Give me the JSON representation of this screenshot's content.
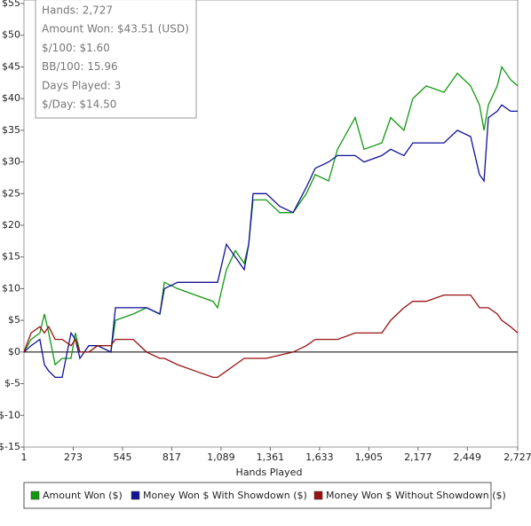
{
  "chart_data": {
    "type": "line",
    "x_label": "Hands Played",
    "stats": [
      "Hands: 2,727",
      "Amount Won: $43.51 (USD)",
      "$/100: $1.60",
      "BB/100: 15.96",
      "Days Played: 3",
      "$/Day: $14.50"
    ],
    "x": [
      1,
      40,
      89,
      114,
      138,
      173,
      212,
      261,
      285,
      310,
      359,
      408,
      481,
      506,
      604,
      678,
      751,
      776,
      849,
      947,
      1045,
      1070,
      1119,
      1168,
      1217,
      1242,
      1266,
      1339,
      1413,
      1487,
      1560,
      1609,
      1683,
      1732,
      1830,
      1879,
      1977,
      2026,
      2099,
      2148,
      2222,
      2320,
      2394,
      2467,
      2516,
      2541,
      2565,
      2614,
      2639,
      2688,
      2727
    ],
    "series": [
      {
        "name": "Amount Won ($)",
        "color": "#119911",
        "values": [
          0,
          2,
          3,
          6,
          3,
          -2,
          -1,
          -1,
          3,
          0,
          0,
          1,
          0,
          5,
          6,
          7,
          6,
          11,
          10,
          9,
          8,
          7,
          13,
          16,
          14,
          17,
          24,
          24,
          22,
          22,
          25,
          28,
          27,
          32,
          37,
          32,
          33,
          37,
          35,
          40,
          42,
          41,
          44,
          42,
          39,
          35,
          39,
          42,
          45,
          43,
          42
        ]
      },
      {
        "name": "Money Won $ With Showdown ($)",
        "color": "#111199",
        "values": [
          0,
          1,
          2,
          -2,
          -3,
          -4,
          -4,
          3,
          2,
          -1,
          1,
          1,
          0,
          7,
          7,
          7,
          6,
          10,
          11,
          11,
          11,
          11,
          17,
          15,
          13,
          17,
          25,
          25,
          23,
          22,
          26,
          29,
          30,
          31,
          31,
          30,
          31,
          32,
          31,
          33,
          33,
          33,
          35,
          34,
          28,
          27,
          37,
          38,
          39,
          38,
          38
        ]
      },
      {
        "name": "Money Won $ Without Showdown ($)",
        "color": "#991111",
        "values": [
          0,
          3,
          4,
          3,
          4,
          2,
          2,
          1,
          2,
          0,
          0,
          1,
          1,
          2,
          2,
          0,
          -1,
          -1,
          -2,
          -3,
          -4,
          -4,
          -3,
          -2,
          -1,
          -1,
          -1,
          -1,
          -0.5,
          0,
          1,
          2,
          2,
          2,
          3,
          3,
          3,
          5,
          7,
          8,
          8,
          9,
          9,
          9,
          7,
          7,
          7,
          6,
          5,
          4,
          3
        ]
      }
    ],
    "xlim": [
      1,
      2727
    ],
    "xticks": [
      1,
      273,
      545,
      817,
      {
        "value": 1089,
        "label": "1,089"
      },
      {
        "value": 1361,
        "label": "1,361"
      },
      {
        "value": 1633,
        "label": "1,633"
      },
      {
        "value": 1905,
        "label": "1,905"
      },
      {
        "value": 2177,
        "label": "2,177"
      },
      {
        "value": 2449,
        "label": "2,449"
      },
      {
        "value": 2727,
        "label": "2,727"
      }
    ],
    "ylim": [
      -15,
      55
    ],
    "yticks": [
      {
        "value": -15,
        "label": "$-15"
      },
      {
        "value": -10,
        "label": "$-10"
      },
      {
        "value": -5,
        "label": "$-5"
      },
      {
        "value": 0,
        "label": "$0"
      },
      {
        "value": 5,
        "label": "$5"
      },
      {
        "value": 10,
        "label": "$10"
      },
      {
        "value": 15,
        "label": "$15"
      },
      {
        "value": 20,
        "label": "$20"
      },
      {
        "value": 25,
        "label": "$25"
      },
      {
        "value": 30,
        "label": "$30"
      },
      {
        "value": 35,
        "label": "$35"
      },
      {
        "value": 40,
        "label": "$40"
      },
      {
        "value": 45,
        "label": "$45"
      },
      {
        "value": 50,
        "label": "$50"
      },
      {
        "value": 55,
        "label": "$55"
      }
    ],
    "zero_line": true,
    "legend": "bottom"
  }
}
